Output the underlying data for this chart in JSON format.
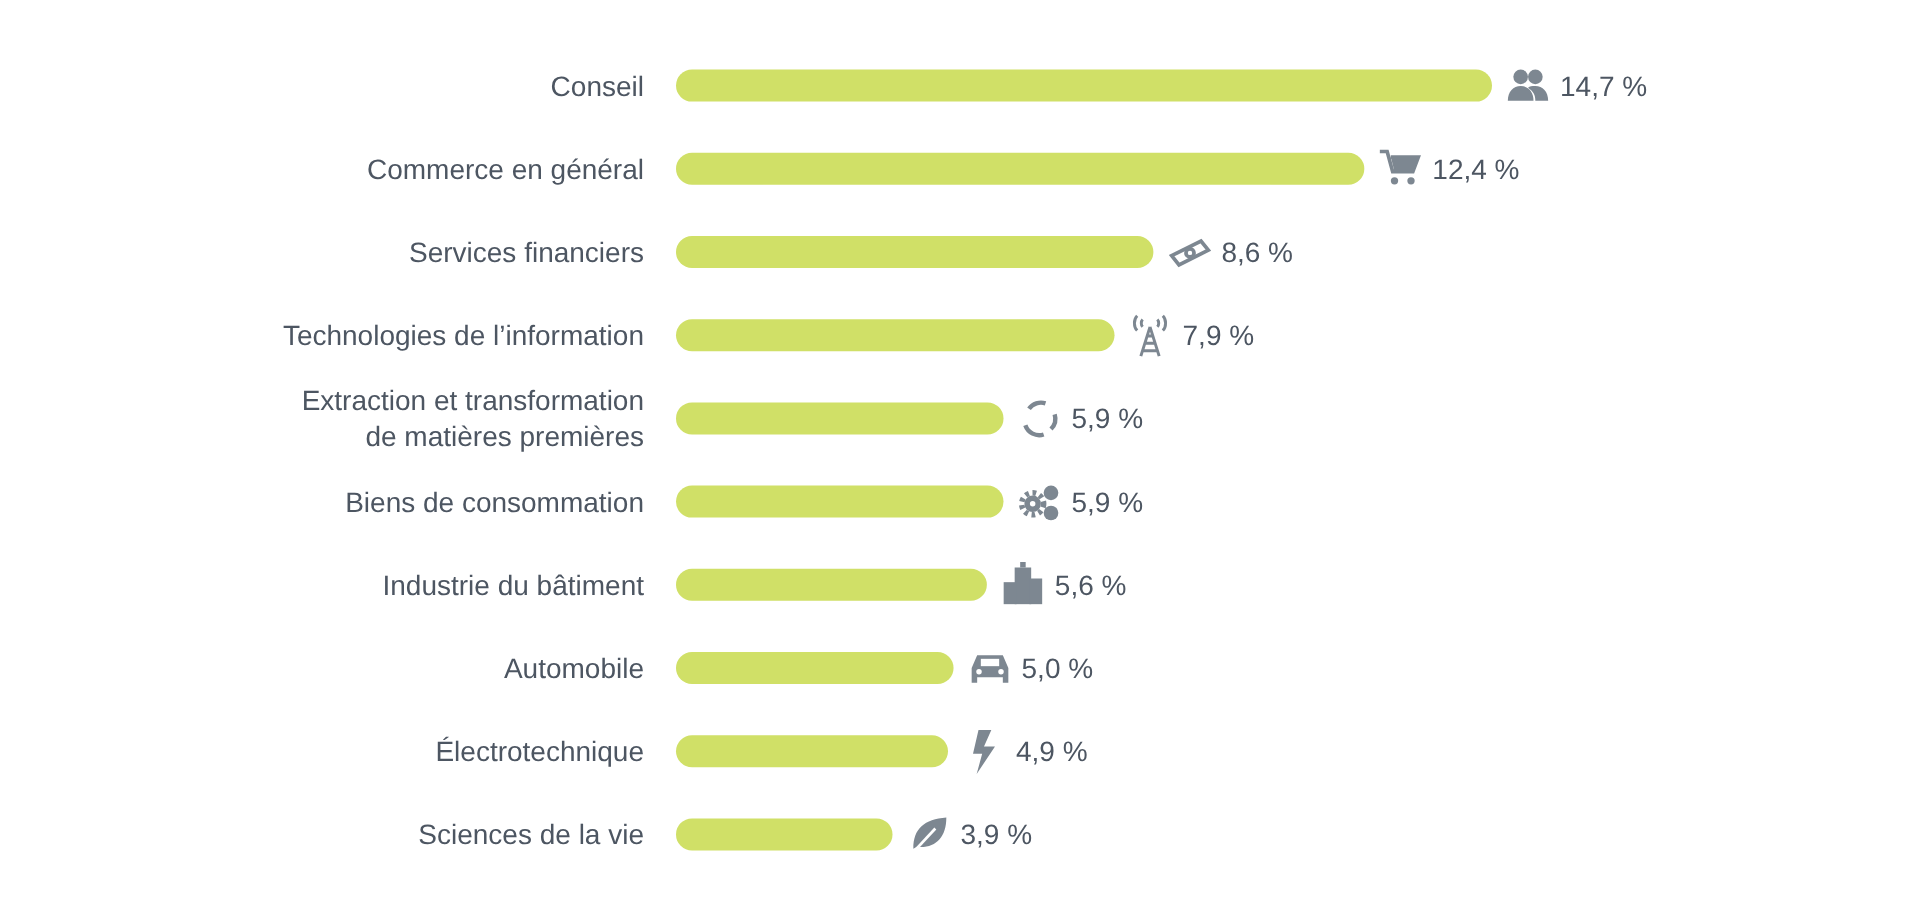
{
  "chart_data": {
    "type": "bar",
    "orientation": "horizontal",
    "color": "#d0e067",
    "data_labels": true,
    "categories": [
      "Conseil",
      "Commerce en général",
      "Services financiers",
      "Technologies de l’information",
      "Extraction et transformation\nde matières premières",
      "Biens de consommation",
      "Industrie du bâtiment",
      "Automobile",
      "Électrotechnique",
      "Sciences de la vie"
    ],
    "values": [
      14.7,
      12.4,
      8.6,
      7.9,
      5.9,
      5.9,
      5.6,
      5.0,
      4.9,
      3.9
    ],
    "value_labels": [
      "14,7 %",
      "12,4 %",
      "8,6 %",
      "7,9 %",
      "5,9 %",
      "5,9 %",
      "5,6 %",
      "5,0 %",
      "4,9 %",
      "3,9 %"
    ]
  }
}
